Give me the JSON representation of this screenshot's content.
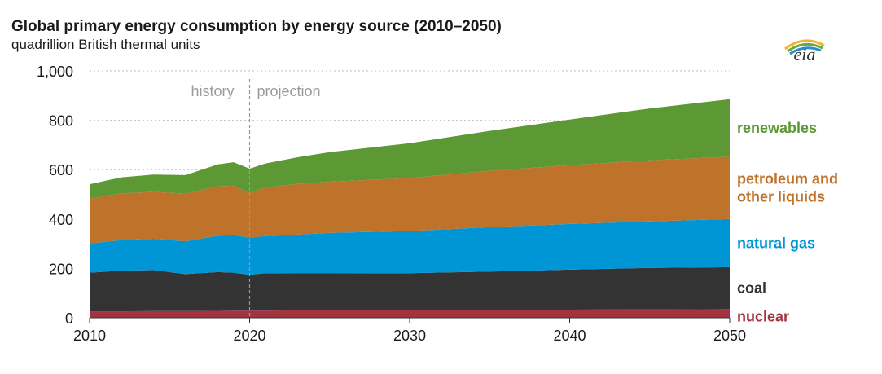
{
  "header": {
    "title": "Global primary energy consumption by energy source (2010–2050)",
    "subtitle": "quadrillion British thermal units",
    "logo_text": "eia"
  },
  "chart_data": {
    "type": "area",
    "stacked": true,
    "x": [
      2010,
      2012,
      2014,
      2016,
      2018,
      2019,
      2020,
      2021,
      2023,
      2025,
      2030,
      2035,
      2040,
      2045,
      2050
    ],
    "series": [
      {
        "name": "nuclear",
        "color": "#a33340",
        "values": [
          26,
          26,
          27,
          27,
          28,
          29,
          29,
          29,
          30,
          30,
          31,
          32,
          33,
          34,
          35
        ]
      },
      {
        "name": "coal",
        "color": "#333333",
        "values": [
          157,
          165,
          166,
          150,
          157,
          154,
          145,
          152,
          150,
          150,
          150,
          155,
          162,
          168,
          170
        ]
      },
      {
        "name": "natural gas",
        "color": "#0096d6",
        "values": [
          118,
          124,
          127,
          133,
          147,
          152,
          150,
          150,
          157,
          164,
          170,
          180,
          185,
          188,
          195
        ]
      },
      {
        "name": "petroleum and other liquids",
        "color": "#bf722a",
        "values": [
          182,
          189,
          190,
          193,
          201,
          200,
          182,
          197,
          205,
          207,
          215,
          228,
          238,
          248,
          252
        ]
      },
      {
        "name": "renewables",
        "color": "#5c9834",
        "values": [
          58,
          65,
          70,
          75,
          88,
          95,
          98,
          97,
          108,
          120,
          141,
          162,
          185,
          210,
          233
        ]
      }
    ],
    "xlim": [
      2010,
      2050
    ],
    "ylim": [
      0,
      1000
    ],
    "x_ticks": [
      "2010",
      "2020",
      "2030",
      "2040",
      "2050"
    ],
    "y_ticks": [
      "0",
      "200",
      "400",
      "600",
      "800",
      "1,000"
    ],
    "annotations": {
      "history": "history",
      "projection": "projection",
      "divider_year": 2020
    },
    "legend_labels": {
      "renewables": [
        "renewables"
      ],
      "petroleum and other liquids": [
        "petroleum and",
        "other liquids"
      ],
      "natural gas": [
        "natural gas"
      ],
      "coal": [
        "coal"
      ],
      "nuclear": [
        "nuclear"
      ]
    },
    "legend_placement": "right, inline",
    "grid": "horizontal dotted"
  }
}
